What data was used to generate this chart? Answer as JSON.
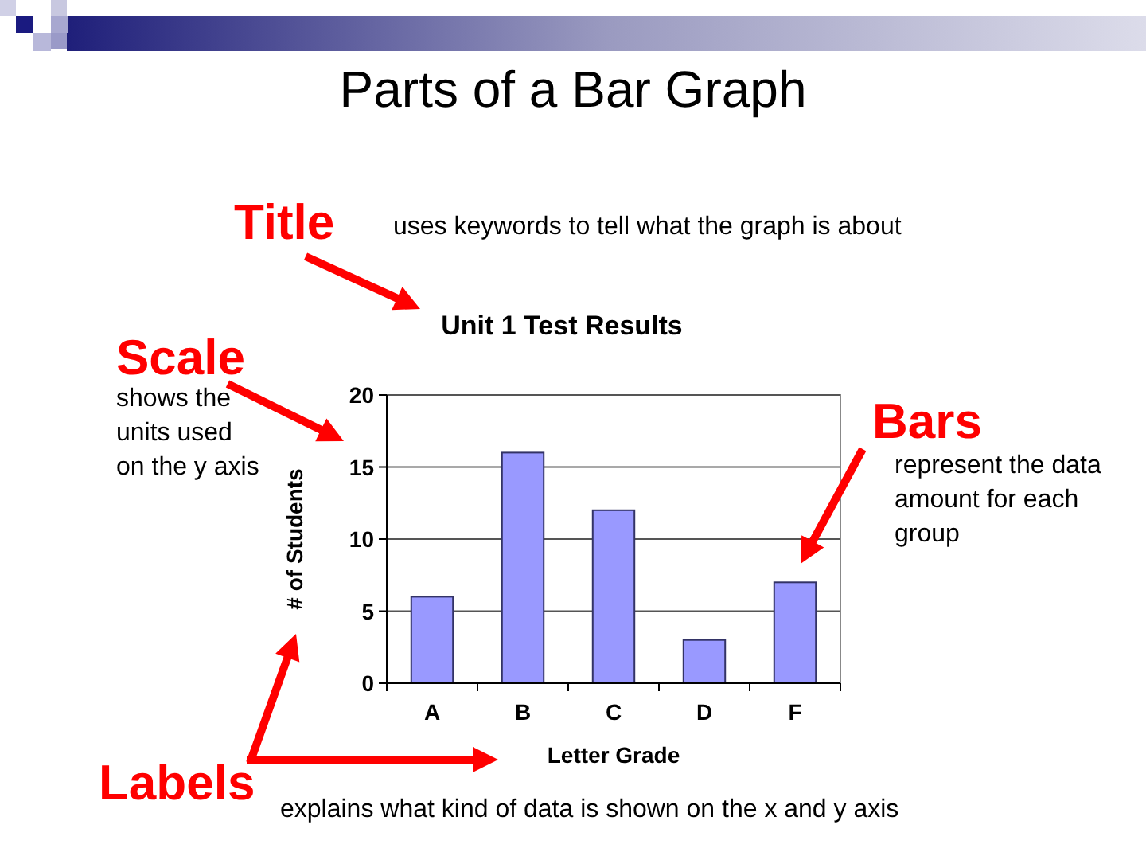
{
  "chart_data": {
    "type": "bar",
    "title": "Parts of a Bar Graph",
    "subtitle": "Unit 1 Test Results",
    "xlabel": "Letter Grade",
    "ylabel": "# of Students",
    "categories": [
      "A",
      "B",
      "C",
      "D",
      "F"
    ],
    "values": [
      6,
      16,
      12,
      3,
      7
    ],
    "color": "#9999ff",
    "ylim": [
      0,
      20
    ],
    "yticks": [
      0,
      5,
      10,
      15,
      20
    ],
    "grid": "y",
    "annotations": [
      "Title",
      "uses keywords to tell what the graph is about",
      "Scale",
      "shows the\nunits used\non the y axis",
      "Bars",
      "represent the data\namount for each\ngroup",
      "Labels",
      "explains what kind of data is shown on the x and y axis"
    ]
  }
}
